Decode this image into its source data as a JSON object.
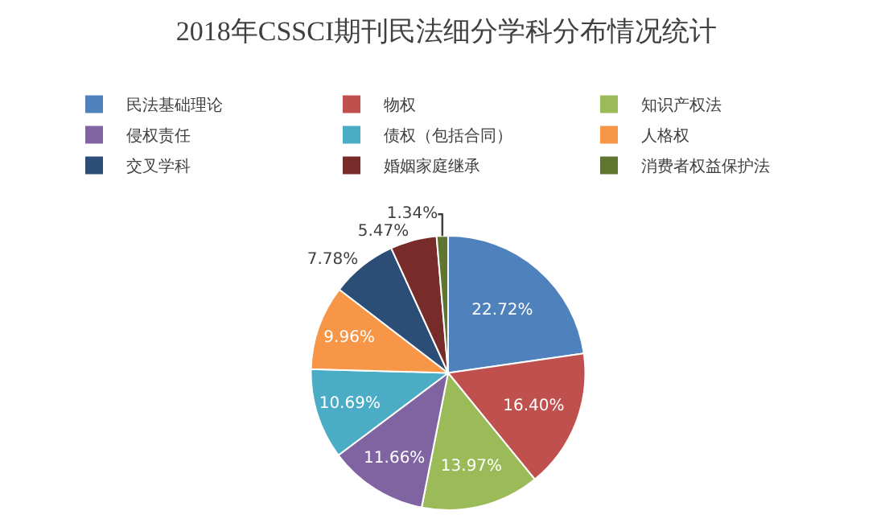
{
  "chart_data": {
    "type": "pie",
    "title": "2018年CSSCI期刊民法细分学科分布情况统计",
    "categories": [
      "民法基础理论",
      "物权",
      "知识产权法",
      "侵权责任",
      "债权（包括合同）",
      "人格权",
      "交叉学科",
      "婚姻家庭继承",
      "消费者权益保护法"
    ],
    "values": [
      22.72,
      16.4,
      13.97,
      11.66,
      10.69,
      9.96,
      7.78,
      5.47,
      1.34
    ],
    "value_labels": [
      "22.72%",
      "16.40%",
      "13.97%",
      "11.66%",
      "10.69%",
      "9.96%",
      "7.78%",
      "5.47%",
      "1.34%"
    ],
    "colors": [
      "#4f81bd",
      "#c0504d",
      "#9bbb59",
      "#8064a2",
      "#4bacc6",
      "#f79646",
      "#2c4d75",
      "#772c2a",
      "#5f7530"
    ],
    "legend": "top"
  }
}
